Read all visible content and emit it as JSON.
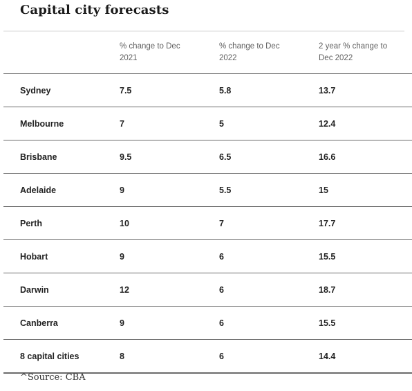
{
  "title": "Capital city forecasts",
  "source": "^Source: CBA",
  "chart_data": {
    "type": "table",
    "title": "Capital city forecasts",
    "columns": [
      "",
      "% change to Dec 2021",
      "% change to Dec 2022",
      "2 year % change to Dec 2022"
    ],
    "rows": [
      [
        "Sydney",
        "7.5",
        "5.8",
        "13.7"
      ],
      [
        "Melbourne",
        "7",
        "5",
        "12.4"
      ],
      [
        "Brisbane",
        "9.5",
        "6.5",
        "16.6"
      ],
      [
        "Adelaide",
        "9",
        "5.5",
        "15"
      ],
      [
        "Perth",
        "10",
        "7",
        "17.7"
      ],
      [
        "Hobart",
        "9",
        "6",
        "15.5"
      ],
      [
        "Darwin",
        "12",
        "6",
        "18.7"
      ],
      [
        "Canberra",
        "9",
        "6",
        "15.5"
      ],
      [
        "8 capital cities",
        "8",
        "6",
        "14.4"
      ]
    ],
    "source": "^Source: CBA"
  }
}
